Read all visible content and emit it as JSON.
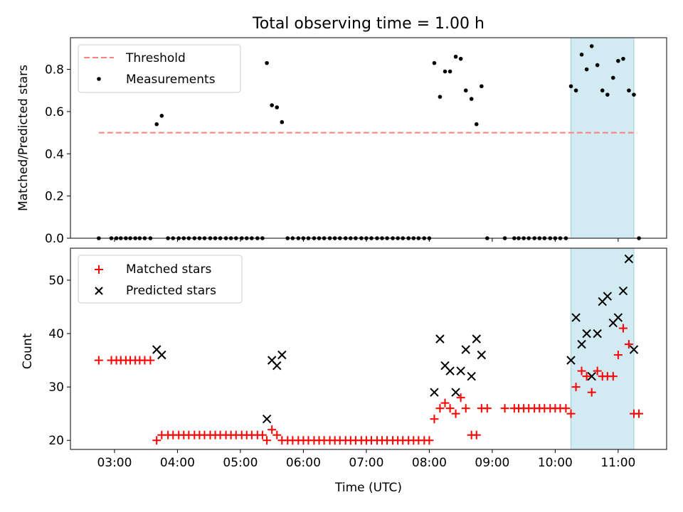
{
  "chart_data": [
    {
      "type": "scatter",
      "title": "Total observing time = 1.00 h",
      "xlabel": "",
      "ylabel": "Matched/Predicted stars",
      "xlim": [
        2.3,
        11.77
      ],
      "ylim": [
        0,
        0.95
      ],
      "yticks": [
        0.0,
        0.2,
        0.4,
        0.6,
        0.8
      ],
      "ytick_labels": [
        "0.0",
        "0.2",
        "0.4",
        "0.6",
        "0.8"
      ],
      "highlight": {
        "x0": 10.25,
        "x1": 11.25,
        "color": "#add8e6"
      },
      "legend": {
        "position": "top-left"
      },
      "series": [
        {
          "name": "Threshold",
          "style": "dashed-line",
          "color": "#ff7f7f",
          "x": [
            2.75,
            11.3
          ],
          "y": [
            0.5,
            0.5
          ]
        },
        {
          "name": "Measurements",
          "style": "dot",
          "color": "#000000",
          "x": [
            2.75,
            2.95,
            3.03,
            3.1,
            3.18,
            3.25,
            3.33,
            3.4,
            3.48,
            3.57,
            3.67,
            3.75,
            3.85,
            3.93,
            4.02,
            4.1,
            4.18,
            4.27,
            4.35,
            4.43,
            4.52,
            4.6,
            4.68,
            4.77,
            4.85,
            4.93,
            5.02,
            5.1,
            5.18,
            5.27,
            5.35,
            5.42,
            5.5,
            5.58,
            5.66,
            5.75,
            5.83,
            5.92,
            6.0,
            6.08,
            6.17,
            6.25,
            6.33,
            6.42,
            6.5,
            6.58,
            6.67,
            6.75,
            6.83,
            6.92,
            7.0,
            7.08,
            7.17,
            7.25,
            7.33,
            7.42,
            7.5,
            7.58,
            7.67,
            7.75,
            7.83,
            7.92,
            8.0,
            8.08,
            8.17,
            8.25,
            8.33,
            8.42,
            8.5,
            8.58,
            8.67,
            8.75,
            8.83,
            8.92,
            9.2,
            9.35,
            9.42,
            9.5,
            9.58,
            9.67,
            9.75,
            9.83,
            9.92,
            10.0,
            10.08,
            10.17,
            10.25,
            10.33,
            10.42,
            10.5,
            10.58,
            10.67,
            10.75,
            10.83,
            10.92,
            11.0,
            11.08,
            11.17,
            11.25,
            11.33
          ],
          "y": [
            0.0,
            0.0,
            0.0,
            0.0,
            0.0,
            0.0,
            0.0,
            0.0,
            0.0,
            0.0,
            0.54,
            0.58,
            0.0,
            0.0,
            0.0,
            0.0,
            0.0,
            0.0,
            0.0,
            0.0,
            0.0,
            0.0,
            0.0,
            0.0,
            0.0,
            0.0,
            0.0,
            0.0,
            0.0,
            0.0,
            0.0,
            0.83,
            0.63,
            0.62,
            0.55,
            0.0,
            0.0,
            0.0,
            0.0,
            0.0,
            0.0,
            0.0,
            0.0,
            0.0,
            0.0,
            0.0,
            0.0,
            0.0,
            0.0,
            0.0,
            0.0,
            0.0,
            0.0,
            0.0,
            0.0,
            0.0,
            0.0,
            0.0,
            0.0,
            0.0,
            0.0,
            0.0,
            0.0,
            0.83,
            0.67,
            0.79,
            0.79,
            0.86,
            0.85,
            0.7,
            0.66,
            0.54,
            0.72,
            0.0,
            0.0,
            0.0,
            0.0,
            0.0,
            0.0,
            0.0,
            0.0,
            0.0,
            0.0,
            0.0,
            0.0,
            0.0,
            0.72,
            0.7,
            0.87,
            0.8,
            0.91,
            0.82,
            0.7,
            0.68,
            0.76,
            0.84,
            0.85,
            0.7,
            0.68,
            0.0
          ]
        }
      ]
    },
    {
      "type": "scatter",
      "title": "",
      "xlabel": "Time (UTC)",
      "ylabel": "Count",
      "xlim": [
        2.3,
        11.77
      ],
      "ylim": [
        18.3,
        56
      ],
      "xticks": [
        3,
        4,
        5,
        6,
        7,
        8,
        9,
        10,
        11
      ],
      "xtick_labels": [
        "03:00",
        "04:00",
        "05:00",
        "06:00",
        "07:00",
        "08:00",
        "09:00",
        "10:00",
        "11:00"
      ],
      "yticks": [
        20,
        30,
        40,
        50
      ],
      "ytick_labels": [
        "20",
        "30",
        "40",
        "50"
      ],
      "highlight": {
        "x0": 10.25,
        "x1": 11.25,
        "color": "#add8e6"
      },
      "legend": {
        "position": "top-left"
      },
      "series": [
        {
          "name": "Matched stars",
          "style": "plus",
          "color": "#ff0000",
          "x": [
            2.75,
            2.95,
            3.03,
            3.1,
            3.18,
            3.25,
            3.33,
            3.4,
            3.48,
            3.57,
            3.67,
            3.75,
            3.85,
            3.93,
            4.02,
            4.1,
            4.18,
            4.27,
            4.35,
            4.43,
            4.52,
            4.6,
            4.68,
            4.77,
            4.85,
            4.93,
            5.02,
            5.1,
            5.18,
            5.27,
            5.35,
            5.42,
            5.5,
            5.58,
            5.66,
            5.75,
            5.83,
            5.92,
            6.0,
            6.08,
            6.17,
            6.25,
            6.33,
            6.42,
            6.5,
            6.58,
            6.67,
            6.75,
            6.83,
            6.92,
            7.0,
            7.08,
            7.17,
            7.25,
            7.33,
            7.42,
            7.5,
            7.58,
            7.67,
            7.75,
            7.83,
            7.92,
            8.0,
            8.08,
            8.17,
            8.25,
            8.33,
            8.42,
            8.5,
            8.58,
            8.67,
            8.75,
            8.83,
            8.92,
            9.2,
            9.35,
            9.42,
            9.5,
            9.58,
            9.67,
            9.75,
            9.83,
            9.92,
            10.0,
            10.08,
            10.17,
            10.25,
            10.33,
            10.42,
            10.5,
            10.58,
            10.67,
            10.75,
            10.83,
            10.92,
            11.0,
            11.08,
            11.17,
            11.25,
            11.33
          ],
          "y": [
            35,
            35,
            35,
            35,
            35,
            35,
            35,
            35,
            35,
            35,
            20,
            21,
            21,
            21,
            21,
            21,
            21,
            21,
            21,
            21,
            21,
            21,
            21,
            21,
            21,
            21,
            21,
            21,
            21,
            21,
            21,
            20,
            22,
            21,
            20,
            20,
            20,
            20,
            20,
            20,
            20,
            20,
            20,
            20,
            20,
            20,
            20,
            20,
            20,
            20,
            20,
            20,
            20,
            20,
            20,
            20,
            20,
            20,
            20,
            20,
            20,
            20,
            20,
            24,
            26,
            27,
            26,
            25,
            28,
            26,
            21,
            21,
            26,
            26,
            26,
            26,
            26,
            26,
            26,
            26,
            26,
            26,
            26,
            26,
            26,
            26,
            25,
            30,
            33,
            32,
            29,
            33,
            32,
            32,
            32,
            36,
            41,
            38,
            25,
            25
          ]
        },
        {
          "name": "Predicted stars",
          "style": "x",
          "color": "#000000",
          "x": [
            3.67,
            3.75,
            5.42,
            5.5,
            5.58,
            5.66,
            8.08,
            8.17,
            8.25,
            8.33,
            8.42,
            8.5,
            8.58,
            8.67,
            8.75,
            8.83,
            10.25,
            10.33,
            10.42,
            10.5,
            10.58,
            10.67,
            10.75,
            10.83,
            10.92,
            11.0,
            11.08,
            11.17,
            11.25
          ],
          "y": [
            37,
            36,
            24,
            35,
            34,
            36,
            29,
            39,
            34,
            33,
            29,
            33,
            37,
            32,
            39,
            36,
            35,
            43,
            38,
            40,
            32,
            40,
            46,
            47,
            42,
            43,
            48,
            54,
            37
          ]
        }
      ]
    }
  ]
}
